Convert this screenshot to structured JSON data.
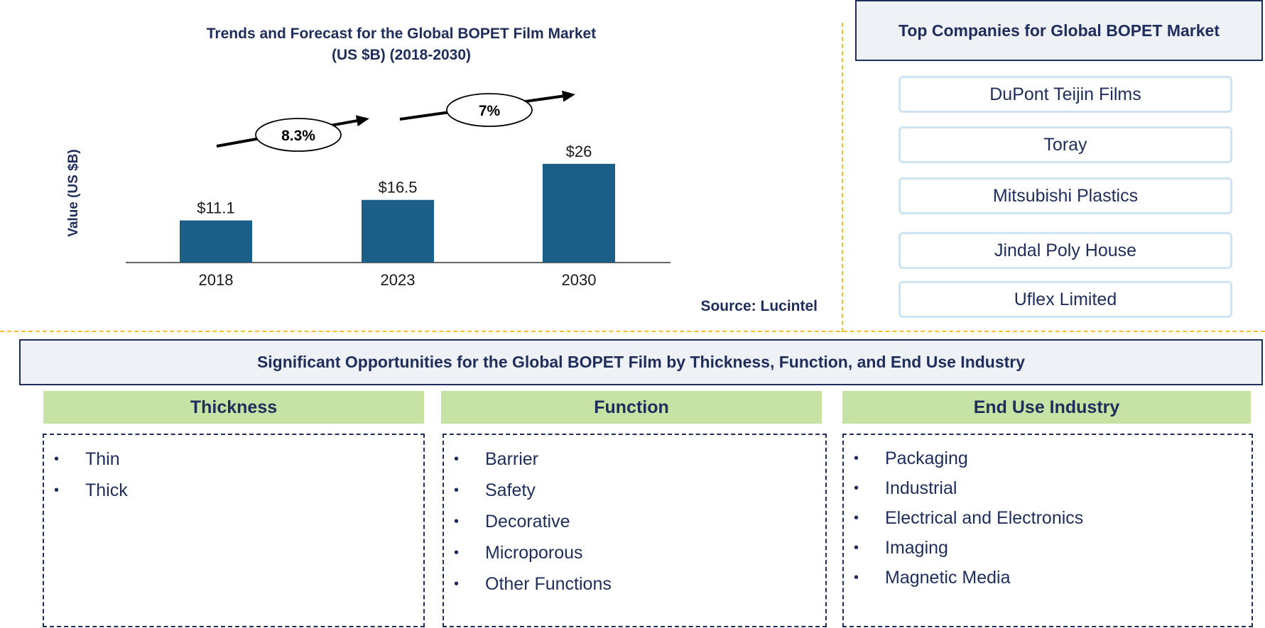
{
  "chart_data": {
    "type": "bar",
    "title_line1": "Trends and Forecast for the Global BOPET Film Market",
    "title_line2": "(US $B) (2018-2030)",
    "ylabel": "Value (US $B)",
    "categories": [
      "2018",
      "2023",
      "2030"
    ],
    "values": [
      11.1,
      16.5,
      26
    ],
    "value_labels": [
      "$11.1",
      "$16.5",
      "$26"
    ],
    "growth_labels": [
      "8.3%",
      "7%"
    ],
    "bar_color": "#1b5e87",
    "ylim": [
      0,
      30
    ]
  },
  "source": "Source: Lucintel",
  "companies": {
    "title": "Top Companies for Global BOPET Market",
    "items": [
      "DuPont Teijin Films",
      "Toray",
      "Mitsubishi Plastics",
      "Jindal Poly House",
      "Uflex Limited"
    ]
  },
  "opportunities": {
    "title": "Significant Opportunities for the Global BOPET Film by Thickness, Function, and End Use Industry",
    "categories": [
      {
        "name": "Thickness",
        "items": [
          "Thin",
          "Thick"
        ]
      },
      {
        "name": "Function",
        "items": [
          "Barrier",
          "Safety",
          "Decorative",
          "Microporous",
          "Other Functions"
        ]
      },
      {
        "name": "End Use Industry",
        "items": [
          "Packaging",
          "Industrial",
          "Electrical and Electronics",
          "Imaging",
          "Magnetic Media"
        ]
      }
    ],
    "bullet": "•"
  }
}
